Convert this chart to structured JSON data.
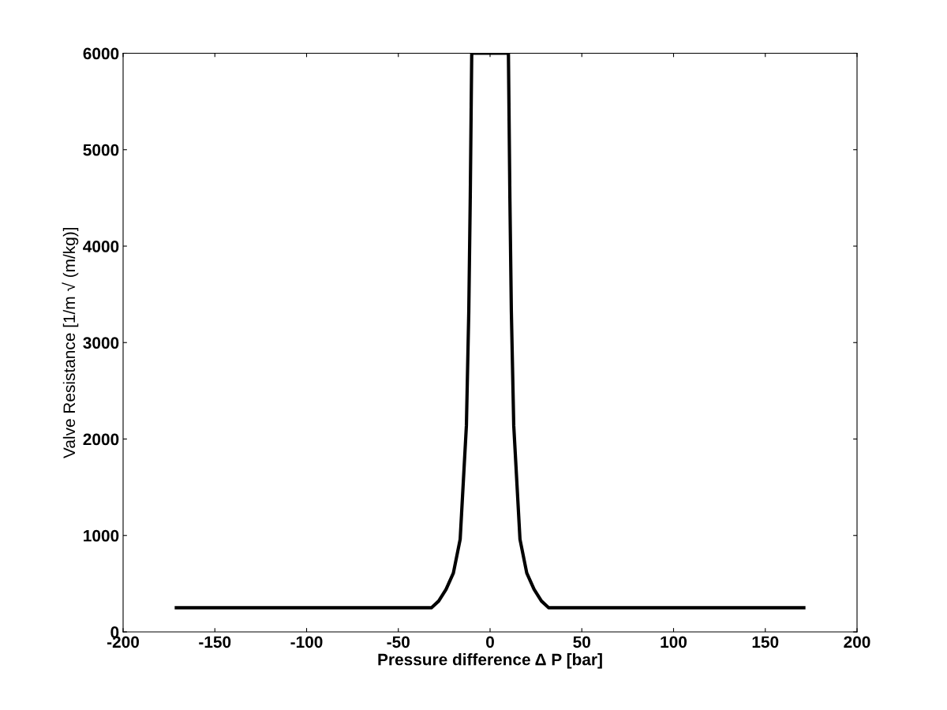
{
  "chart_data": {
    "type": "line",
    "xlabel": "Pressure difference Δ P [bar]",
    "ylabel": "Valve Resistance [1/m √ (m/kg)]",
    "x": [
      -171,
      -32,
      -28,
      -24,
      -20,
      -16.3,
      -12.9,
      -11.6,
      -10.8,
      -10,
      10,
      10.8,
      11.6,
      12.9,
      16.3,
      20,
      24,
      28,
      32,
      171
    ],
    "series": [
      {
        "color": "#000000",
        "values": [
          250,
          250,
          320,
          440,
          610,
          960,
          2140,
          3320,
          4500,
          6000,
          6000,
          4500,
          3320,
          2140,
          960,
          610,
          440,
          320,
          250,
          250
        ]
      }
    ],
    "xlim": [
      -200,
      200
    ],
    "xticks": [
      -200,
      -150,
      -100,
      -50,
      0,
      50,
      100,
      150,
      200
    ],
    "ylim": [
      0,
      6000
    ],
    "yticks": [
      0,
      1000,
      2000,
      3000,
      4000,
      5000,
      6000
    ],
    "grid": false,
    "legend": false,
    "marker": "none",
    "line_style": "solid"
  }
}
